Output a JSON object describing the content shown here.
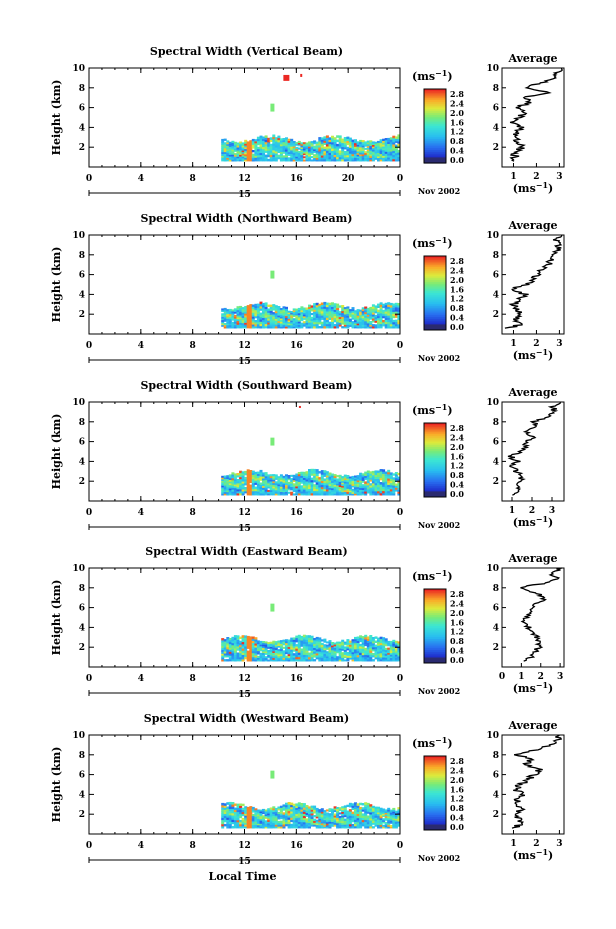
{
  "figure": {
    "xlabel": "Local Time",
    "date_label": "Nov 2002",
    "day_label": "15",
    "units_label": "(ms",
    "units_sup": "−1",
    "average_title": "Average",
    "colorbar_ticks": [
      "2.8",
      "2.4",
      "2.0",
      "1.6",
      "1.2",
      "0.8",
      "0.4",
      "0.0"
    ],
    "colors": {
      "low": "#2a2a6e",
      "mid": "#33ccee",
      "high": "#ee2222"
    }
  },
  "chart_data": [
    {
      "type": "heatmap",
      "title": "Spectral Width (Vertical Beam)",
      "ylabel": "Height (km)",
      "x_ticks": [
        "0",
        "4",
        "8",
        "12",
        "16",
        "20",
        "0"
      ],
      "xlim": [
        0,
        24
      ],
      "y_ticks": [
        "2",
        "4",
        "6",
        "8",
        "10"
      ],
      "ylim": [
        0,
        10
      ],
      "colorbar_range": [
        0.0,
        3.0
      ],
      "data_extent": {
        "x": [
          10.2,
          24
        ],
        "y": [
          0.6,
          3.0
        ]
      },
      "average_profile": {
        "x_ticks": [
          "1",
          "2",
          "3"
        ],
        "xlim": [
          0.5,
          3.2
        ],
        "y_ticks": [
          "2",
          "4",
          "6",
          "8",
          "10"
        ],
        "heights": [
          0.6,
          1.0,
          1.5,
          2.0,
          2.5,
          3.0,
          3.5,
          4.0,
          4.5,
          5.0,
          5.5,
          6.0,
          6.5,
          7.0,
          7.5,
          8.0,
          8.5,
          9.0,
          9.5,
          10.0
        ],
        "values": [
          0.9,
          1.1,
          1.0,
          1.4,
          1.2,
          1.0,
          1.1,
          1.3,
          1.0,
          1.2,
          1.5,
          1.1,
          1.8,
          1.4,
          2.5,
          1.5,
          2.2,
          2.8,
          2.9,
          3.1
        ]
      }
    },
    {
      "type": "heatmap",
      "title": "Spectral Width (Northward Beam)",
      "ylabel": "Height (km)",
      "x_ticks": [
        "0",
        "4",
        "8",
        "12",
        "16",
        "20",
        "0"
      ],
      "xlim": [
        0,
        24
      ],
      "y_ticks": [
        "2",
        "4",
        "6",
        "8",
        "10"
      ],
      "ylim": [
        0,
        10
      ],
      "colorbar_range": [
        0.0,
        3.0
      ],
      "data_extent": {
        "x": [
          10.2,
          24
        ],
        "y": [
          0.6,
          3.0
        ]
      },
      "average_profile": {
        "x_ticks": [
          "1",
          "2",
          "3"
        ],
        "xlim": [
          0.5,
          3.2
        ],
        "y_ticks": [
          "2",
          "4",
          "6",
          "8",
          "10"
        ],
        "heights": [
          0.6,
          1.0,
          1.5,
          2.0,
          2.5,
          3.0,
          3.5,
          4.0,
          4.5,
          5.0,
          5.5,
          6.0,
          6.5,
          7.0,
          7.5,
          8.0,
          8.5,
          9.0,
          9.5,
          10.0
        ],
        "values": [
          0.8,
          1.3,
          1.1,
          1.4,
          1.2,
          1.0,
          1.3,
          1.5,
          0.9,
          1.5,
          1.9,
          2.0,
          2.2,
          2.5,
          2.6,
          2.7,
          2.9,
          3.0,
          2.9,
          3.1
        ]
      }
    },
    {
      "type": "heatmap",
      "title": "Spectral Width (Southward Beam)",
      "ylabel": "Height (km)",
      "x_ticks": [
        "0",
        "4",
        "8",
        "12",
        "16",
        "20",
        "0"
      ],
      "xlim": [
        0,
        24
      ],
      "y_ticks": [
        "2",
        "4",
        "6",
        "8",
        "10"
      ],
      "ylim": [
        0,
        10
      ],
      "colorbar_range": [
        0.0,
        3.0
      ],
      "data_extent": {
        "x": [
          10.2,
          24
        ],
        "y": [
          0.6,
          3.0
        ]
      },
      "average_profile": {
        "x_ticks": [
          "1",
          "2",
          "3"
        ],
        "xlim": [
          0.5,
          3.6
        ],
        "y_ticks": [
          "2",
          "4",
          "6",
          "8",
          "10"
        ],
        "heights": [
          0.6,
          1.0,
          1.5,
          2.0,
          2.5,
          3.0,
          3.5,
          4.0,
          4.5,
          5.0,
          5.5,
          6.0,
          6.5,
          7.0,
          7.5,
          8.0,
          8.5,
          9.0,
          9.5,
          10.0
        ],
        "values": [
          1.0,
          1.4,
          1.2,
          1.3,
          1.6,
          1.2,
          1.0,
          1.3,
          0.9,
          1.4,
          1.8,
          1.6,
          2.1,
          1.7,
          2.3,
          2.0,
          2.8,
          3.2,
          3.0,
          3.4
        ]
      }
    },
    {
      "type": "heatmap",
      "title": "Spectral Width (Eastward Beam)",
      "ylabel": "Height (km)",
      "x_ticks": [
        "0",
        "4",
        "8",
        "12",
        "16",
        "20",
        "0"
      ],
      "xlim": [
        0,
        24
      ],
      "y_ticks": [
        "2",
        "4",
        "6",
        "8",
        "10"
      ],
      "ylim": [
        0,
        10
      ],
      "colorbar_range": [
        0.0,
        3.0
      ],
      "data_extent": {
        "x": [
          10.2,
          24
        ],
        "y": [
          0.6,
          3.0
        ]
      },
      "average_profile": {
        "x_ticks": [
          "0",
          "1",
          "2",
          "3"
        ],
        "xlim": [
          0,
          3.2
        ],
        "y_ticks": [
          "2",
          "4",
          "6",
          "8",
          "10"
        ],
        "heights": [
          0.6,
          1.0,
          1.5,
          2.0,
          2.5,
          3.0,
          3.5,
          4.0,
          4.5,
          5.0,
          5.5,
          6.0,
          6.5,
          7.0,
          7.5,
          8.0,
          8.5,
          9.0,
          9.5,
          10.0
        ],
        "values": [
          1.0,
          1.5,
          1.7,
          1.9,
          2.0,
          1.8,
          1.6,
          1.4,
          1.1,
          1.3,
          1.5,
          1.6,
          1.9,
          2.2,
          1.7,
          0.8,
          2.4,
          2.9,
          2.5,
          3.1
        ]
      }
    },
    {
      "type": "heatmap",
      "title": "Spectral Width (Westward Beam)",
      "ylabel": "Height (km)",
      "x_ticks": [
        "0",
        "4",
        "8",
        "12",
        "16",
        "20",
        "0"
      ],
      "xlim": [
        0,
        24
      ],
      "y_ticks": [
        "2",
        "4",
        "6",
        "8",
        "10"
      ],
      "ylim": [
        0,
        10
      ],
      "colorbar_range": [
        0.0,
        3.0
      ],
      "data_extent": {
        "x": [
          10.2,
          24
        ],
        "y": [
          0.6,
          3.0
        ]
      },
      "average_profile": {
        "x_ticks": [
          "1",
          "2",
          "3"
        ],
        "xlim": [
          0.5,
          3.2
        ],
        "y_ticks": [
          "2",
          "4",
          "6",
          "8",
          "10"
        ],
        "heights": [
          0.6,
          1.0,
          1.5,
          2.0,
          2.5,
          3.0,
          3.5,
          4.0,
          4.5,
          5.0,
          5.5,
          6.0,
          6.5,
          7.0,
          7.5,
          8.0,
          8.5,
          9.0,
          9.5,
          10.0
        ],
        "values": [
          1.0,
          1.3,
          1.2,
          1.0,
          1.3,
          1.1,
          1.2,
          1.4,
          1.1,
          1.3,
          1.6,
          1.9,
          2.1,
          1.5,
          1.8,
          1.2,
          2.0,
          2.6,
          2.9,
          3.0
        ]
      }
    }
  ]
}
